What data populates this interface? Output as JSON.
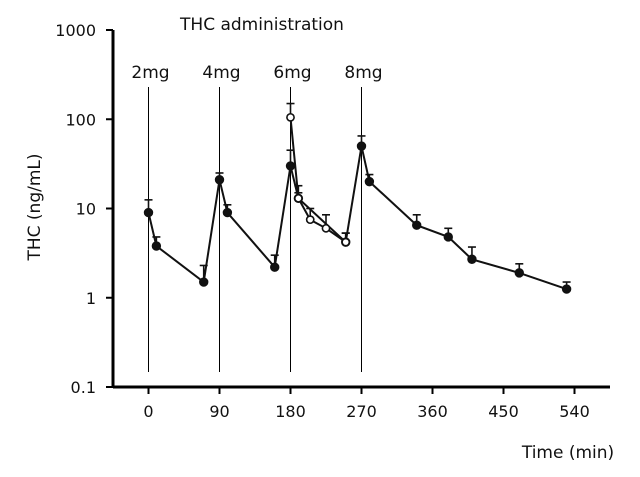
{
  "chart_data": {
    "type": "scatter",
    "title": "THC administration",
    "xlabel": "Time (min)",
    "ylabel": "THC (ng/mL)",
    "xlim": [
      -45,
      585
    ],
    "ylim": [
      0.1,
      1000
    ],
    "yscale": "log",
    "x_ticks": [
      0,
      90,
      180,
      270,
      360,
      450,
      540
    ],
    "x_tick_labels": [
      "0",
      "90",
      "180",
      "270",
      "360",
      "450",
      "540"
    ],
    "y_ticks": [
      0.1,
      1,
      10,
      100,
      1000
    ],
    "y_tick_labels": [
      "0.1",
      "1",
      "10",
      "100",
      "1000"
    ],
    "doses": [
      {
        "label": "2mg",
        "x": 0
      },
      {
        "label": "4mg",
        "x": 90
      },
      {
        "label": "6mg",
        "x": 180
      },
      {
        "label": "8mg",
        "x": 270
      }
    ],
    "series": [
      {
        "marker": "filled",
        "x": [
          0,
          10,
          70,
          90,
          100,
          160,
          180,
          190,
          250,
          270,
          280,
          340,
          380,
          410,
          470,
          530
        ],
        "y": [
          9,
          3.8,
          1.5,
          21,
          9,
          2.2,
          30,
          13,
          4.2,
          50,
          20,
          6.5,
          4.8,
          2.7,
          1.9,
          1.25
        ],
        "err_upper": [
          12.5,
          4.8,
          2.3,
          25,
          11,
          3.0,
          45,
          18,
          5.3,
          65,
          24,
          8.5,
          6.0,
          3.7,
          2.4,
          1.5
        ]
      },
      {
        "marker": "open",
        "x": [
          180,
          190,
          205,
          225,
          250
        ],
        "y": [
          105,
          13,
          7.5,
          6,
          4.2
        ],
        "err_upper": [
          150,
          15,
          10,
          8.5,
          5.3
        ]
      }
    ],
    "grid": false,
    "legend": "none",
    "colors": {
      "line": "#111111",
      "axis": "#000000",
      "open_marker_fill": "#ffffff"
    }
  }
}
